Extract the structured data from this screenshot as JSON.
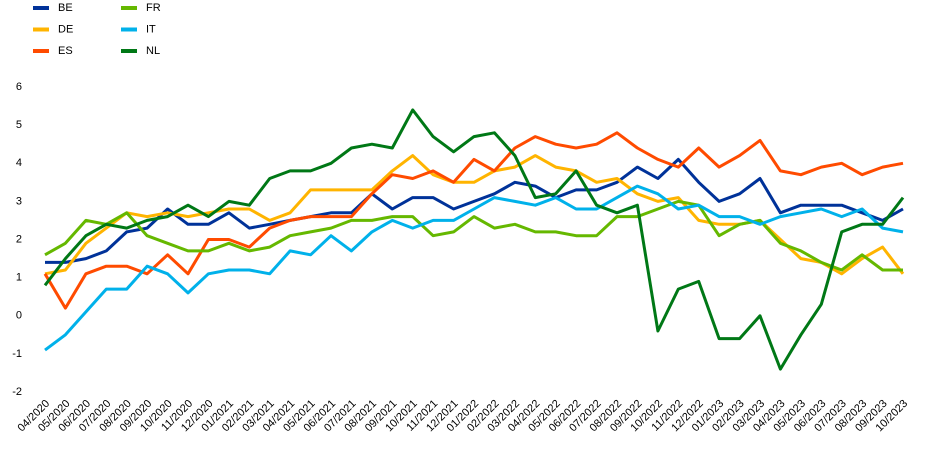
{
  "chart_data": {
    "type": "line",
    "categories": [
      "04/2020",
      "05/2020",
      "06/2020",
      "07/2020",
      "08/2020",
      "09/2020",
      "10/2020",
      "11/2020",
      "12/2020",
      "01/2021",
      "02/2021",
      "03/2021",
      "04/2021",
      "05/2021",
      "06/2021",
      "07/2021",
      "08/2021",
      "09/2021",
      "10/2021",
      "11/2021",
      "12/2021",
      "01/2022",
      "02/2022",
      "03/2022",
      "04/2022",
      "05/2022",
      "06/2022",
      "07/2022",
      "08/2022",
      "09/2022",
      "10/2022",
      "11/2022",
      "12/2022",
      "01/2023",
      "02/2023",
      "03/2023",
      "04/2023",
      "05/2023",
      "06/2023",
      "07/2023",
      "08/2023",
      "09/2023",
      "10/2023"
    ],
    "series": [
      {
        "name": "BE",
        "color": "#003299",
        "values": [
          1.4,
          1.4,
          1.5,
          1.7,
          2.2,
          2.3,
          2.8,
          2.4,
          2.4,
          2.7,
          2.3,
          2.4,
          2.5,
          2.6,
          2.7,
          2.7,
          3.2,
          2.8,
          3.1,
          3.1,
          2.8,
          3.0,
          3.2,
          3.5,
          3.4,
          3.1,
          3.3,
          3.3,
          3.5,
          3.9,
          3.6,
          4.1,
          3.5,
          3.0,
          3.2,
          3.6,
          2.7,
          2.9,
          2.9,
          2.9,
          2.7,
          2.5,
          2.8
        ]
      },
      {
        "name": "DE",
        "color": "#ffb400",
        "values": [
          1.1,
          1.2,
          1.9,
          2.3,
          2.7,
          2.6,
          2.7,
          2.6,
          2.7,
          2.8,
          2.8,
          2.5,
          2.7,
          3.3,
          3.3,
          3.3,
          3.3,
          3.8,
          4.2,
          3.7,
          3.5,
          3.5,
          3.8,
          3.9,
          4.2,
          3.9,
          3.8,
          3.5,
          3.6,
          3.2,
          3.0,
          3.1,
          2.5,
          2.4,
          2.4,
          2.5,
          2.0,
          1.5,
          1.4,
          1.1,
          1.5,
          1.8,
          1.1
        ]
      },
      {
        "name": "ES",
        "color": "#ff4b00",
        "values": [
          1.1,
          0.2,
          1.1,
          1.3,
          1.3,
          1.1,
          1.6,
          1.1,
          2.0,
          2.0,
          1.8,
          2.3,
          2.5,
          2.6,
          2.6,
          2.6,
          3.2,
          3.7,
          3.6,
          3.8,
          3.5,
          4.1,
          3.8,
          4.4,
          4.7,
          4.5,
          4.4,
          4.5,
          4.8,
          4.4,
          4.1,
          3.9,
          4.4,
          3.9,
          4.2,
          4.6,
          3.8,
          3.7,
          3.9,
          4.0,
          3.7,
          3.9,
          4.0
        ]
      },
      {
        "name": "FR",
        "color": "#65b800",
        "values": [
          1.6,
          1.9,
          2.5,
          2.4,
          2.7,
          2.1,
          1.9,
          1.7,
          1.7,
          1.9,
          1.7,
          1.8,
          2.1,
          2.2,
          2.3,
          2.5,
          2.5,
          2.6,
          2.6,
          2.1,
          2.2,
          2.6,
          2.3,
          2.4,
          2.2,
          2.2,
          2.1,
          2.1,
          2.6,
          2.6,
          2.8,
          3.0,
          2.9,
          2.1,
          2.4,
          2.5,
          1.9,
          1.7,
          1.4,
          1.2,
          1.6,
          1.2,
          1.2
        ]
      },
      {
        "name": "IT",
        "color": "#00b1ea",
        "values": [
          -0.9,
          -0.5,
          0.1,
          0.7,
          0.7,
          1.3,
          1.1,
          0.6,
          1.1,
          1.2,
          1.2,
          1.1,
          1.7,
          1.6,
          2.1,
          1.7,
          2.2,
          2.5,
          2.3,
          2.5,
          2.5,
          2.8,
          3.1,
          3.0,
          2.9,
          3.1,
          2.8,
          2.8,
          3.1,
          3.4,
          3.2,
          2.8,
          2.9,
          2.6,
          2.6,
          2.4,
          2.6,
          2.7,
          2.8,
          2.6,
          2.8,
          2.3,
          2.2
        ]
      },
      {
        "name": "NL",
        "color": "#007816",
        "values": [
          0.8,
          1.5,
          2.1,
          2.4,
          2.3,
          2.5,
          2.6,
          2.9,
          2.6,
          3.0,
          2.9,
          3.6,
          3.8,
          3.8,
          4.0,
          4.4,
          4.5,
          4.4,
          5.4,
          4.7,
          4.3,
          4.7,
          4.8,
          4.2,
          3.1,
          3.2,
          3.8,
          2.9,
          2.7,
          2.9,
          -0.4,
          0.7,
          0.9,
          -0.6,
          -0.6,
          0.0,
          -1.4,
          -0.5,
          0.3,
          2.2,
          2.4,
          2.4,
          3.1
        ]
      }
    ],
    "ylim": [
      -2,
      6
    ],
    "yticks": [
      -2,
      -1,
      0,
      1,
      2,
      3,
      4,
      5,
      6
    ],
    "grid": false,
    "legend": "top-left"
  }
}
